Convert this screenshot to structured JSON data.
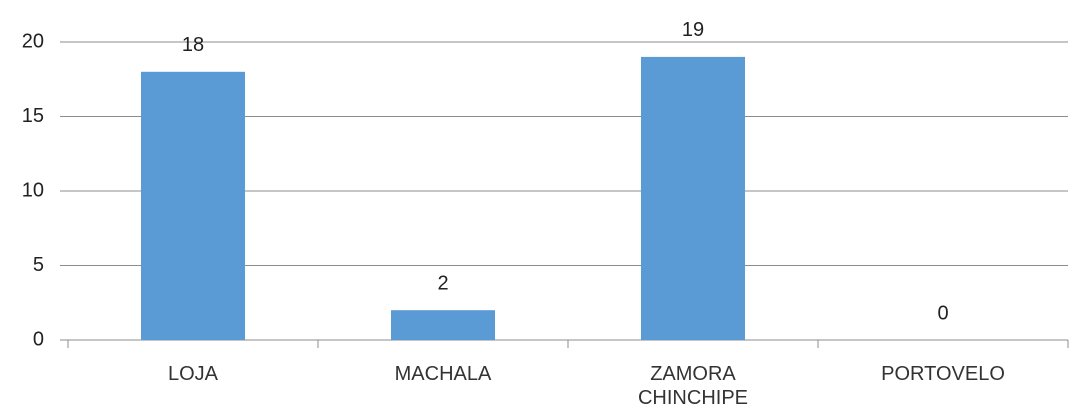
{
  "chart_data": {
    "type": "bar",
    "categories": [
      "LOJA",
      "MACHALA",
      "ZAMORA CHINCHIPE",
      "PORTOVELO"
    ],
    "values": [
      18,
      2,
      19,
      0
    ],
    "color": "#5b9bd5",
    "ylim": [
      0,
      20
    ],
    "yticks": [
      0,
      5,
      10,
      15,
      20
    ],
    "grid": true
  }
}
